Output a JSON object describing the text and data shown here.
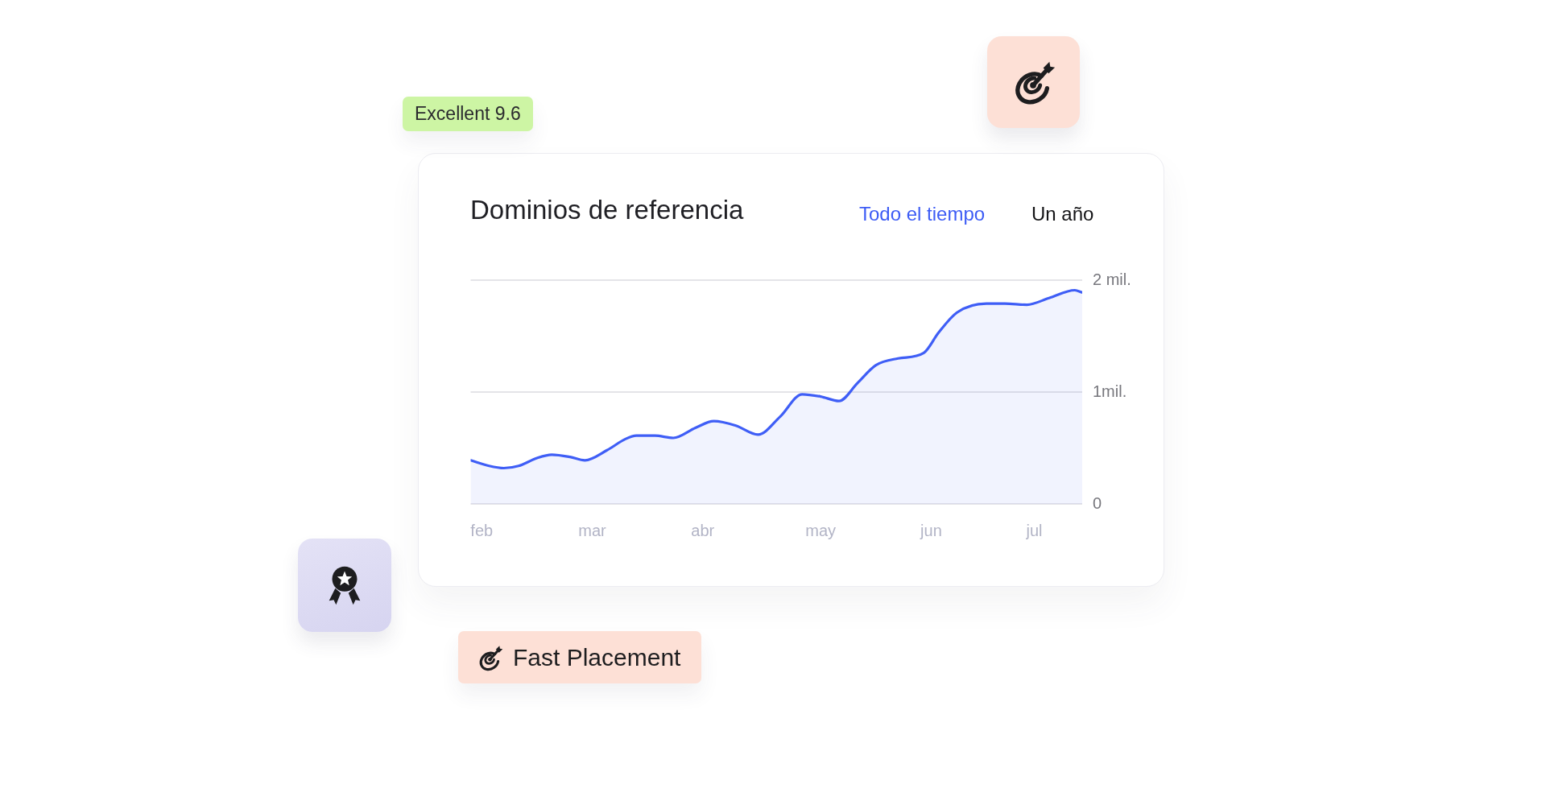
{
  "chart_data": {
    "type": "area",
    "title": "Dominios de referencia",
    "annotations": [
      "Todo el tiempo",
      "Un año",
      "Excellent 9.6",
      "Fast Placement"
    ],
    "x": [
      "--01-29",
      "--02-03",
      "--02-07",
      "--02-11",
      "--02-16",
      "--02-20",
      "--02-25",
      "--03-01",
      "--03-07",
      "--03-12",
      "--03-15",
      "--03-20",
      "--03-25",
      "--03-31",
      "--04-05",
      "--04-11",
      "--04-17",
      "--04-23",
      "--04-29",
      "--05-04",
      "--05-09",
      "--05-14",
      "--05-19",
      "--05-25",
      "--06-01",
      "--06-05",
      "--06-10",
      "--06-18",
      "--06-23",
      "--06-29",
      "--07-05",
      "--07-12",
      "--07-14"
    ],
    "values": [
      0.39,
      0.34,
      0.32,
      0.34,
      0.41,
      0.44,
      0.42,
      0.39,
      0.48,
      0.58,
      0.61,
      0.61,
      0.59,
      0.68,
      0.74,
      0.7,
      0.62,
      0.78,
      0.98,
      0.96,
      0.92,
      1.08,
      1.24,
      1.3,
      1.35,
      1.53,
      1.71,
      1.79,
      1.79,
      1.78,
      1.84,
      1.91,
      1.89
    ],
    "color": "#3f5ef6",
    "xlim": [
      "--01-29",
      "--07-14"
    ],
    "xticks": [
      {
        "value": "--02-01",
        "label": "feb"
      },
      {
        "value": "--03-03",
        "label": "mar"
      },
      {
        "value": "--04-02",
        "label": "abr"
      },
      {
        "value": "--05-04",
        "label": "may"
      },
      {
        "value": "--06-03",
        "label": "jun"
      },
      {
        "value": "--07-01",
        "label": "jul"
      }
    ],
    "ylim": [
      0,
      2
    ],
    "yticks": [
      0,
      {
        "value": 1,
        "label": "1mil."
      },
      {
        "value": 2,
        "label": "2 mil."
      }
    ],
    "grid": "y"
  }
}
